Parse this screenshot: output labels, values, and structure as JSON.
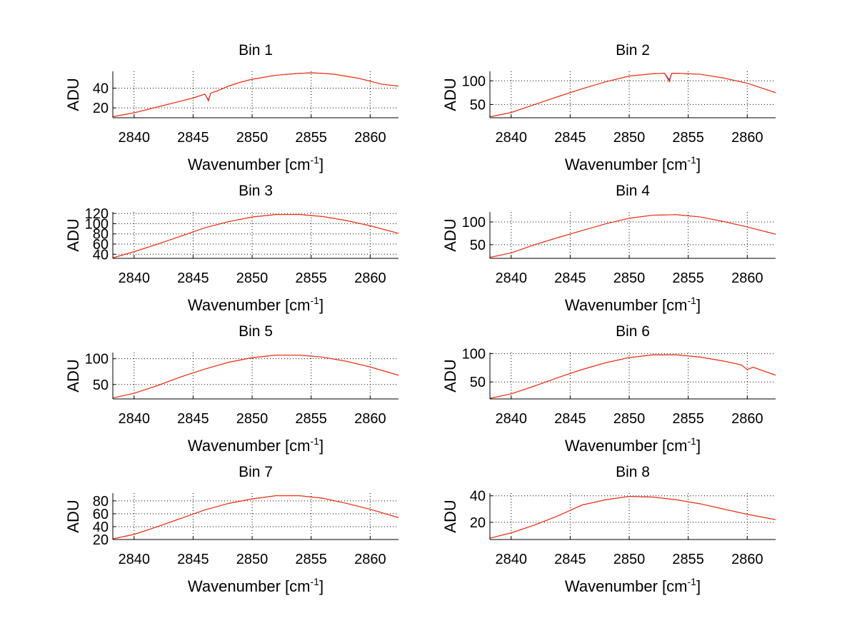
{
  "figure": {
    "background": "#ffffff"
  },
  "chart_data": [
    {
      "type": "line",
      "title": "Bin 1",
      "xlabel": "Wavenumber [cm",
      "xlabel_sup": "-1",
      "xlabel_tail": "]",
      "ylabel": "ADU",
      "xlim": [
        2838.2,
        2862.4
      ],
      "ylim": [
        10,
        57
      ],
      "xticks": [
        2840,
        2845,
        2850,
        2855,
        2860
      ],
      "yticks": [
        20,
        40
      ],
      "grid": true,
      "series": [
        {
          "name": "spectrum-blue",
          "color": "#3040c0",
          "x": [
            2838.2,
            2840,
            2842,
            2844,
            2845,
            2846,
            2846.3,
            2846.5,
            2847,
            2848,
            2849,
            2850,
            2851,
            2852,
            2853,
            2854,
            2855,
            2856,
            2857,
            2858,
            2859,
            2860,
            2861,
            2862.4
          ],
          "y": [
            11,
            15,
            21,
            27,
            30,
            34,
            28,
            35,
            37,
            42,
            46,
            49,
            51,
            53,
            54,
            55,
            55.5,
            55,
            54,
            52,
            50,
            47,
            44,
            42
          ]
        },
        {
          "name": "spectrum-red",
          "color": "#ff3000",
          "x": [
            2838.2,
            2840,
            2842,
            2844,
            2845,
            2846,
            2846.3,
            2846.5,
            2847,
            2848,
            2849,
            2850,
            2851,
            2852,
            2853,
            2854,
            2855,
            2856,
            2857,
            2858,
            2859,
            2860,
            2861,
            2862.4
          ],
          "y": [
            11,
            15,
            21,
            27,
            30,
            34,
            27,
            35,
            37,
            42,
            46,
            49,
            51,
            53,
            54,
            55,
            55.5,
            55,
            54,
            52,
            50,
            47,
            44,
            42
          ]
        }
      ]
    },
    {
      "type": "line",
      "title": "Bin 2",
      "xlabel": "Wavenumber [cm",
      "xlabel_sup": "-1",
      "xlabel_tail": "]",
      "ylabel": "ADU",
      "xlim": [
        2838.2,
        2862.4
      ],
      "ylim": [
        22,
        120
      ],
      "xticks": [
        2840,
        2845,
        2850,
        2855,
        2860
      ],
      "yticks": [
        50,
        100
      ],
      "grid": true,
      "series": [
        {
          "name": "spectrum-blue",
          "color": "#3040c0",
          "x": [
            2838.2,
            2840,
            2842,
            2844,
            2846,
            2848,
            2850,
            2852,
            2853,
            2853.4,
            2853.6,
            2854,
            2856,
            2858,
            2860,
            2862.4
          ],
          "y": [
            24,
            33,
            50,
            67,
            83,
            98,
            110,
            115,
            116,
            102,
            116,
            116,
            114,
            106,
            95,
            75
          ]
        },
        {
          "name": "spectrum-red",
          "color": "#ff3000",
          "x": [
            2838.2,
            2840,
            2842,
            2844,
            2846,
            2848,
            2850,
            2852,
            2853,
            2853.4,
            2853.6,
            2854,
            2856,
            2858,
            2860,
            2862.4
          ],
          "y": [
            24,
            33,
            50,
            67,
            83,
            98,
            110,
            115,
            116,
            98,
            116,
            116,
            114,
            106,
            95,
            75
          ]
        }
      ]
    },
    {
      "type": "line",
      "title": "Bin 3",
      "xlabel": "Wavenumber [cm",
      "xlabel_sup": "-1",
      "xlabel_tail": "]",
      "ylabel": "ADU",
      "xlim": [
        2838.2,
        2862.4
      ],
      "ylim": [
        32,
        123
      ],
      "xticks": [
        2840,
        2845,
        2850,
        2855,
        2860
      ],
      "yticks": [
        40,
        60,
        80,
        100,
        120
      ],
      "grid": true,
      "series": [
        {
          "name": "spectrum-blue",
          "color": "#3040c0",
          "x": [
            2838.2,
            2840,
            2842,
            2844,
            2846,
            2848,
            2850,
            2852,
            2854,
            2856,
            2858,
            2860,
            2862.4
          ],
          "y": [
            33,
            45,
            60,
            76,
            92,
            104,
            113,
            118,
            118,
            114,
            106,
            96,
            81
          ]
        },
        {
          "name": "spectrum-red",
          "color": "#ff3000",
          "x": [
            2838.2,
            2840,
            2842,
            2844,
            2846,
            2848,
            2850,
            2852,
            2854,
            2856,
            2858,
            2860,
            2862.4
          ],
          "y": [
            33,
            45,
            60,
            76,
            92,
            104,
            113,
            118,
            118,
            114,
            106,
            96,
            81
          ]
        }
      ]
    },
    {
      "type": "line",
      "title": "Bin 4",
      "xlabel": "Wavenumber [cm",
      "xlabel_sup": "-1",
      "xlabel_tail": "]",
      "ylabel": "ADU",
      "xlim": [
        2838.2,
        2862.4
      ],
      "ylim": [
        20,
        122
      ],
      "xticks": [
        2840,
        2845,
        2850,
        2855,
        2860
      ],
      "yticks": [
        50,
        100
      ],
      "grid": true,
      "series": [
        {
          "name": "spectrum-blue",
          "color": "#3040c0",
          "x": [
            2838.2,
            2840,
            2842,
            2844,
            2846,
            2848,
            2850,
            2852,
            2854,
            2856,
            2858,
            2860,
            2862.4
          ],
          "y": [
            22,
            32,
            50,
            66,
            81,
            96,
            108,
            115,
            116,
            111,
            101,
            89,
            73
          ]
        },
        {
          "name": "spectrum-red",
          "color": "#ff3000",
          "x": [
            2838.2,
            2840,
            2842,
            2844,
            2846,
            2848,
            2850,
            2852,
            2854,
            2856,
            2858,
            2860,
            2862.4
          ],
          "y": [
            22,
            32,
            50,
            66,
            81,
            96,
            108,
            115,
            116,
            111,
            101,
            89,
            73
          ]
        }
      ]
    },
    {
      "type": "line",
      "title": "Bin 5",
      "xlabel": "Wavenumber [cm",
      "xlabel_sup": "-1",
      "xlabel_tail": "]",
      "ylabel": "ADU",
      "xlim": [
        2838.2,
        2862.4
      ],
      "ylim": [
        22,
        112
      ],
      "xticks": [
        2840,
        2845,
        2850,
        2855,
        2860
      ],
      "yticks": [
        50,
        100
      ],
      "grid": true,
      "series": [
        {
          "name": "spectrum-blue",
          "color": "#3040c0",
          "x": [
            2838.2,
            2840,
            2842,
            2844,
            2846,
            2848,
            2850,
            2852,
            2854,
            2856,
            2858,
            2860,
            2862.4
          ],
          "y": [
            24,
            33,
            48,
            65,
            80,
            93,
            102,
            107,
            107,
            103,
            95,
            84,
            68
          ]
        },
        {
          "name": "spectrum-red",
          "color": "#ff3000",
          "x": [
            2838.2,
            2840,
            2842,
            2844,
            2846,
            2848,
            2850,
            2852,
            2854,
            2856,
            2858,
            2860,
            2862.4
          ],
          "y": [
            24,
            33,
            48,
            65,
            80,
            93,
            102,
            107,
            107,
            103,
            95,
            84,
            68
          ]
        }
      ]
    },
    {
      "type": "line",
      "title": "Bin 6",
      "xlabel": "Wavenumber [cm",
      "xlabel_sup": "-1",
      "xlabel_tail": "]",
      "ylabel": "ADU",
      "xlim": [
        2838.2,
        2862.4
      ],
      "ylim": [
        20,
        102
      ],
      "xticks": [
        2840,
        2845,
        2850,
        2855,
        2860
      ],
      "yticks": [
        50,
        100
      ],
      "grid": true,
      "series": [
        {
          "name": "spectrum-blue",
          "color": "#3040c0",
          "x": [
            2838.2,
            2840,
            2842,
            2844,
            2846,
            2848,
            2850,
            2852,
            2854,
            2856,
            2858,
            2859.5,
            2860,
            2860.5,
            2862.4
          ],
          "y": [
            21,
            29,
            43,
            58,
            72,
            84,
            93,
            98,
            98,
            94,
            87,
            80,
            72,
            76,
            62
          ]
        },
        {
          "name": "spectrum-red",
          "color": "#ff3000",
          "x": [
            2838.2,
            2840,
            2842,
            2844,
            2846,
            2848,
            2850,
            2852,
            2854,
            2856,
            2858,
            2859.5,
            2860,
            2860.5,
            2862.4
          ],
          "y": [
            21,
            29,
            43,
            58,
            72,
            84,
            93,
            98,
            98,
            94,
            87,
            80,
            72,
            76,
            62
          ]
        }
      ]
    },
    {
      "type": "line",
      "title": "Bin 7",
      "xlabel": "Wavenumber [cm",
      "xlabel_sup": "-1",
      "xlabel_tail": "]",
      "ylabel": "ADU",
      "xlim": [
        2838.2,
        2862.4
      ],
      "ylim": [
        20,
        92
      ],
      "xticks": [
        2840,
        2845,
        2850,
        2855,
        2860
      ],
      "yticks": [
        20,
        40,
        60,
        80
      ],
      "grid": true,
      "series": [
        {
          "name": "spectrum-blue",
          "color": "#3040c0",
          "x": [
            2838.2,
            2840,
            2842,
            2844,
            2846,
            2848,
            2850,
            2852,
            2854,
            2856,
            2858,
            2860,
            2862.4
          ],
          "y": [
            21,
            28,
            40,
            53,
            66,
            76,
            83,
            88,
            88,
            84,
            76,
            67,
            54
          ]
        },
        {
          "name": "spectrum-red",
          "color": "#ff3000",
          "x": [
            2838.2,
            2840,
            2842,
            2844,
            2846,
            2848,
            2850,
            2852,
            2854,
            2856,
            2858,
            2860,
            2862.4
          ],
          "y": [
            21,
            28,
            40,
            53,
            66,
            76,
            83,
            88,
            88,
            84,
            76,
            67,
            54
          ]
        }
      ]
    },
    {
      "type": "line",
      "title": "Bin 8",
      "xlabel": "Wavenumber [cm",
      "xlabel_sup": "-1",
      "xlabel_tail": "]",
      "ylabel": "ADU",
      "xlim": [
        2838.2,
        2862.4
      ],
      "ylim": [
        7,
        42
      ],
      "xticks": [
        2840,
        2845,
        2850,
        2855,
        2860
      ],
      "yticks": [
        20,
        40
      ],
      "grid": true,
      "series": [
        {
          "name": "spectrum-blue",
          "color": "#3040c0",
          "x": [
            2838.2,
            2840,
            2842,
            2844,
            2845,
            2846,
            2848,
            2850,
            2852,
            2854,
            2856,
            2858,
            2860,
            2862.4
          ],
          "y": [
            8,
            12,
            18,
            25,
            29,
            33,
            37,
            39.5,
            39,
            37,
            34,
            30,
            26,
            22
          ]
        },
        {
          "name": "spectrum-red",
          "color": "#ff3000",
          "x": [
            2838.2,
            2840,
            2842,
            2844,
            2845,
            2846,
            2848,
            2850,
            2852,
            2854,
            2856,
            2858,
            2860,
            2862.4
          ],
          "y": [
            8,
            12,
            18,
            25,
            29,
            33,
            37,
            39.5,
            39,
            37,
            34,
            30,
            26,
            22
          ]
        }
      ]
    }
  ]
}
